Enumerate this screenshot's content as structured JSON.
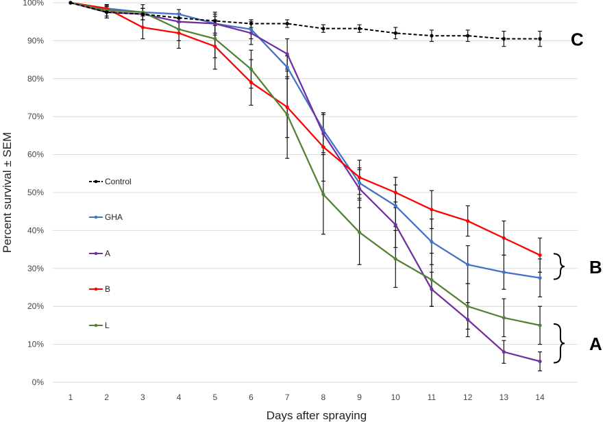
{
  "chart_data": {
    "type": "line",
    "x": [
      1,
      2,
      3,
      4,
      5,
      6,
      7,
      8,
      9,
      10,
      11,
      12,
      13,
      14
    ],
    "xlabel": "Days after spraying",
    "ylabel": "Percent survival ± SEM",
    "ylim": [
      0,
      100
    ],
    "yticks": [
      "0%",
      "10%",
      "20%",
      "30%",
      "40%",
      "50%",
      "60%",
      "70%",
      "80%",
      "90%",
      "100%"
    ],
    "xticks": [
      "1",
      "2",
      "3",
      "4",
      "5",
      "6",
      "7",
      "8",
      "9",
      "10",
      "11",
      "12",
      "13",
      "14"
    ],
    "grid": "horizontal",
    "legend_position": "left",
    "series": [
      {
        "name": "Control",
        "color": "#000000",
        "dashed": true,
        "values": [
          100,
          97.5,
          97,
          96,
          95.2,
          94.5,
          94.5,
          93.2,
          93.2,
          92,
          91.3,
          91.3,
          90.5,
          90.5
        ],
        "sem": [
          0,
          1.5,
          1.5,
          1.2,
          1.2,
          1,
          1,
          1,
          1,
          1.5,
          1.5,
          1.5,
          2,
          2
        ]
      },
      {
        "name": "GHA",
        "color": "#4472C4",
        "dashed": false,
        "values": [
          100,
          98.5,
          97.5,
          97,
          94.5,
          93,
          83,
          66.5,
          52.5,
          46.5,
          37,
          31,
          29,
          27.5
        ],
        "sem": [
          0,
          0.8,
          1,
          1.2,
          2.5,
          2.5,
          3,
          4.5,
          4,
          5.5,
          6,
          5,
          4.5,
          5
        ]
      },
      {
        "name": "A",
        "color": "#7030A0",
        "dashed": false,
        "values": [
          100,
          97.5,
          97,
          95,
          94.5,
          92,
          86.5,
          65.5,
          51,
          41.5,
          24.5,
          16.5,
          8,
          5.5
        ],
        "sem": [
          0,
          1.5,
          1.5,
          2,
          3,
          3,
          4,
          5,
          5,
          6,
          4.5,
          4.5,
          3,
          2.5
        ]
      },
      {
        "name": "B",
        "color": "#FF0000",
        "dashed": false,
        "values": [
          100,
          98.5,
          93.5,
          92,
          88.5,
          79,
          72.5,
          62,
          54,
          50,
          45.5,
          42.5,
          38,
          33.5
        ],
        "sem": [
          0,
          1,
          3,
          4,
          6,
          6,
          8,
          9,
          4.5,
          4,
          5,
          4,
          4.5,
          4.5
        ]
      },
      {
        "name": "L",
        "color": "#548235",
        "dashed": false,
        "values": [
          100,
          98,
          97.5,
          93,
          90.5,
          82.5,
          70.5,
          49.5,
          39.5,
          32.5,
          27,
          20,
          17,
          15
        ],
        "sem": [
          0,
          1.5,
          2,
          3,
          5,
          5,
          11.5,
          10.5,
          8.5,
          7.5,
          7,
          6,
          5,
          5
        ]
      }
    ],
    "annotations": [
      {
        "label": "C",
        "series": [
          "Control"
        ]
      },
      {
        "label": "B",
        "series": [
          "B",
          "GHA"
        ]
      },
      {
        "label": "A",
        "series": [
          "L",
          "A"
        ]
      }
    ]
  }
}
